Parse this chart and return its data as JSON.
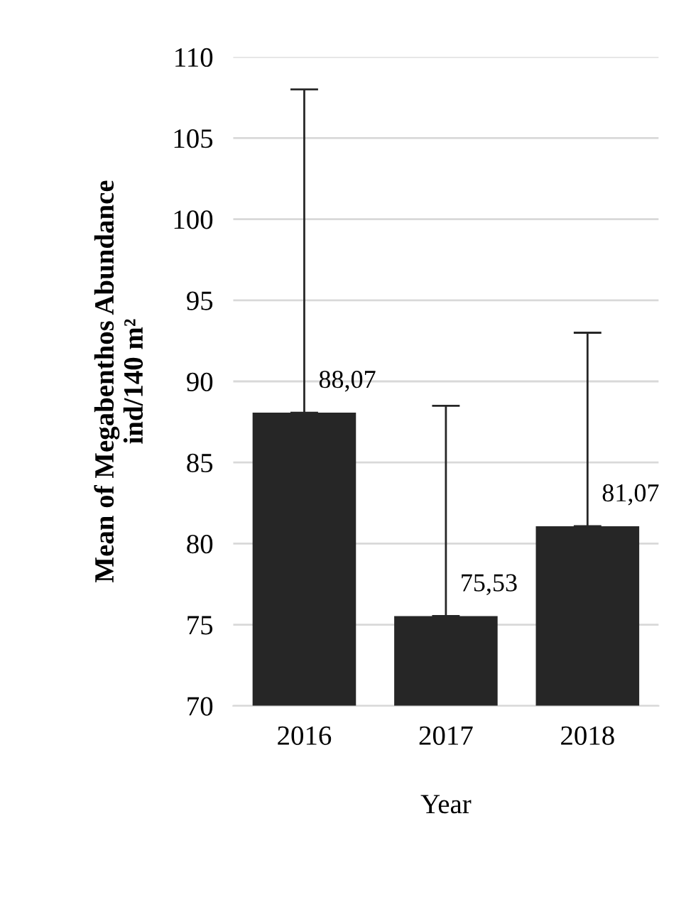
{
  "chart_data": {
    "type": "bar",
    "xlabel": "Year",
    "ylabel": "Mean of Megabenthos Abundance\nind/140 m²",
    "categories": [
      "2016",
      "2017",
      "2018"
    ],
    "values": [
      88.07,
      75.53,
      81.07
    ],
    "value_labels": [
      "88,07",
      "75,53",
      "81,07"
    ],
    "errors": [
      [
        88.07,
        108
      ],
      [
        75.53,
        88.5
      ],
      [
        81.07,
        93
      ]
    ],
    "color": "#262626",
    "ylim": [
      70,
      110
    ],
    "yticks": [
      70,
      75,
      80,
      85,
      90,
      95,
      100,
      105,
      110
    ],
    "grid": "y",
    "legend": false
  }
}
